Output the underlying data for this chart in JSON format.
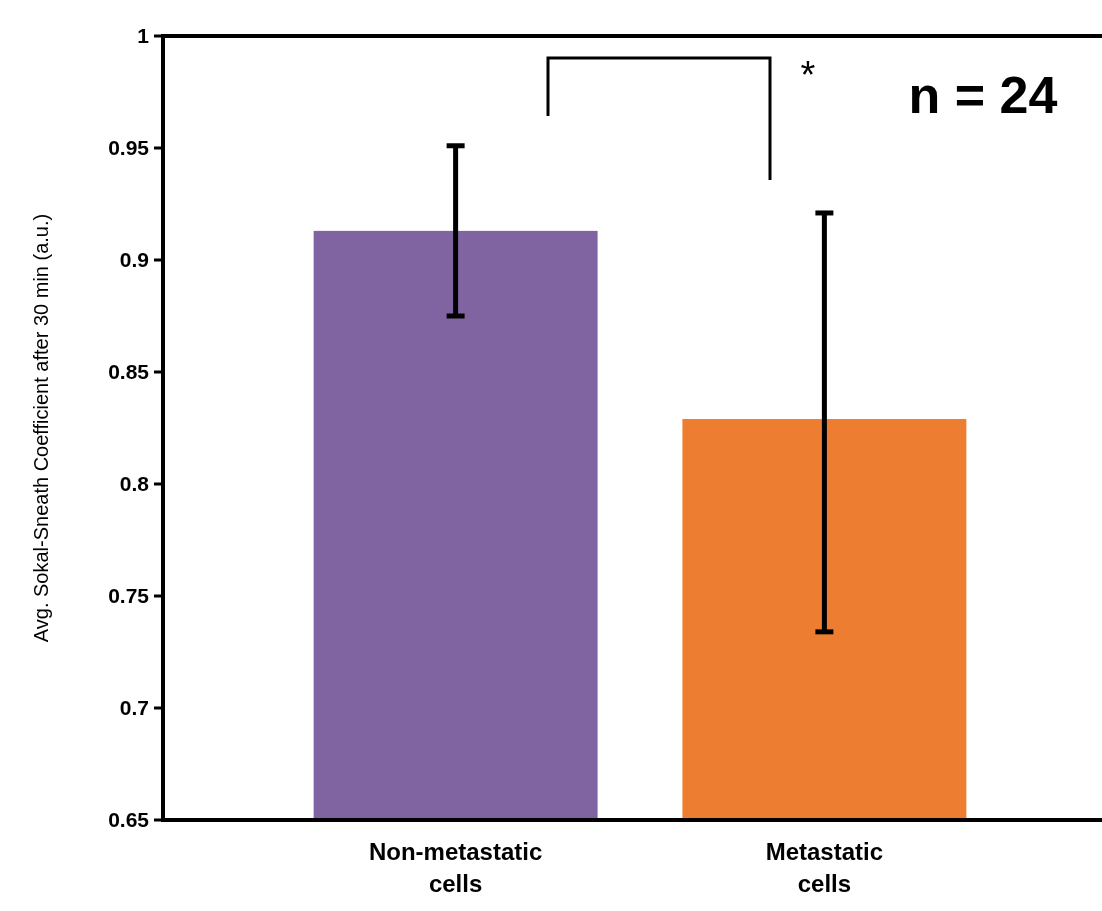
{
  "chart_data": {
    "type": "bar",
    "ylabel": "Avg. Sokal-Sneath Coefficient after 30 min (a.u.)",
    "categories": [
      "Non-metastatic cells",
      "Metastatic cells"
    ],
    "values": [
      0.913,
      0.829
    ],
    "colors": [
      "#8064a2",
      "#ed7d31"
    ],
    "errors": [
      [
        0.875,
        0.951
      ],
      [
        0.734,
        0.921
      ]
    ],
    "ylim": [
      0.65,
      1
    ],
    "yticks": [
      0.65,
      0.7,
      0.75,
      0.8,
      0.85,
      0.9,
      0.95,
      1
    ],
    "grid": false,
    "annotations": [
      "*",
      "n = 24"
    ]
  }
}
